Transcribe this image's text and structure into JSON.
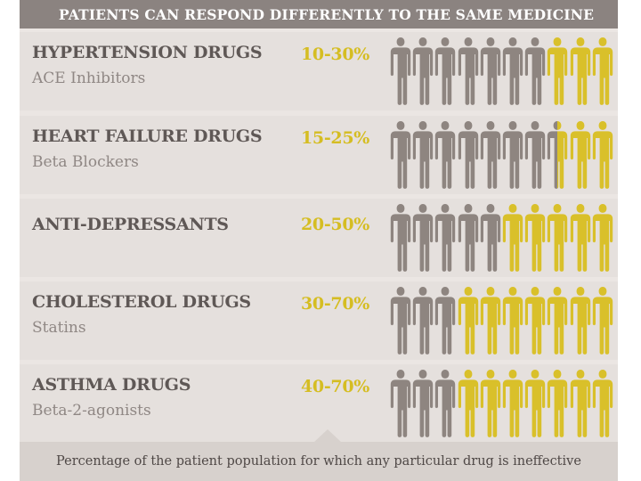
{
  "chart_data": {
    "type": "pictogram",
    "title": "PATIENTS CAN RESPOND DIFFERENTLY TO THE SAME MEDICINE",
    "caption": "Percentage of the patient population for which any particular drug is ineffective",
    "icons_per_row": 10,
    "colors": {
      "effective": "#8e8580",
      "ineffective": "#d9c02a",
      "range": "#d5bd22",
      "title": "#5f5856",
      "subtitle": "#8f8784",
      "header_bg": "#8b8380",
      "row_bg": "#e5e0dd",
      "footer_bg": "#d7d1cd"
    },
    "rows": [
      {
        "title": "HYPERTENSION DRUGS",
        "subtitle": "ACE Inhibitors",
        "range": "10-30%",
        "low": 10,
        "high": 30,
        "ineffective_icons": 3
      },
      {
        "title": "HEART FAILURE DRUGS",
        "subtitle": "Beta Blockers",
        "range": "15-25%",
        "low": 15,
        "high": 25,
        "ineffective_icons": 2.5
      },
      {
        "title": "ANTI-DEPRESSANTS",
        "subtitle": "",
        "range": "20-50%",
        "low": 20,
        "high": 50,
        "ineffective_icons": 5
      },
      {
        "title": "CHOLESTEROL DRUGS",
        "subtitle": "Statins",
        "range": "30-70%",
        "low": 30,
        "high": 70,
        "ineffective_icons": 7
      },
      {
        "title": "ASTHMA DRUGS",
        "subtitle": "Beta-2-agonists",
        "range": "40-70%",
        "low": 40,
        "high": 70,
        "ineffective_icons": 7
      }
    ]
  }
}
